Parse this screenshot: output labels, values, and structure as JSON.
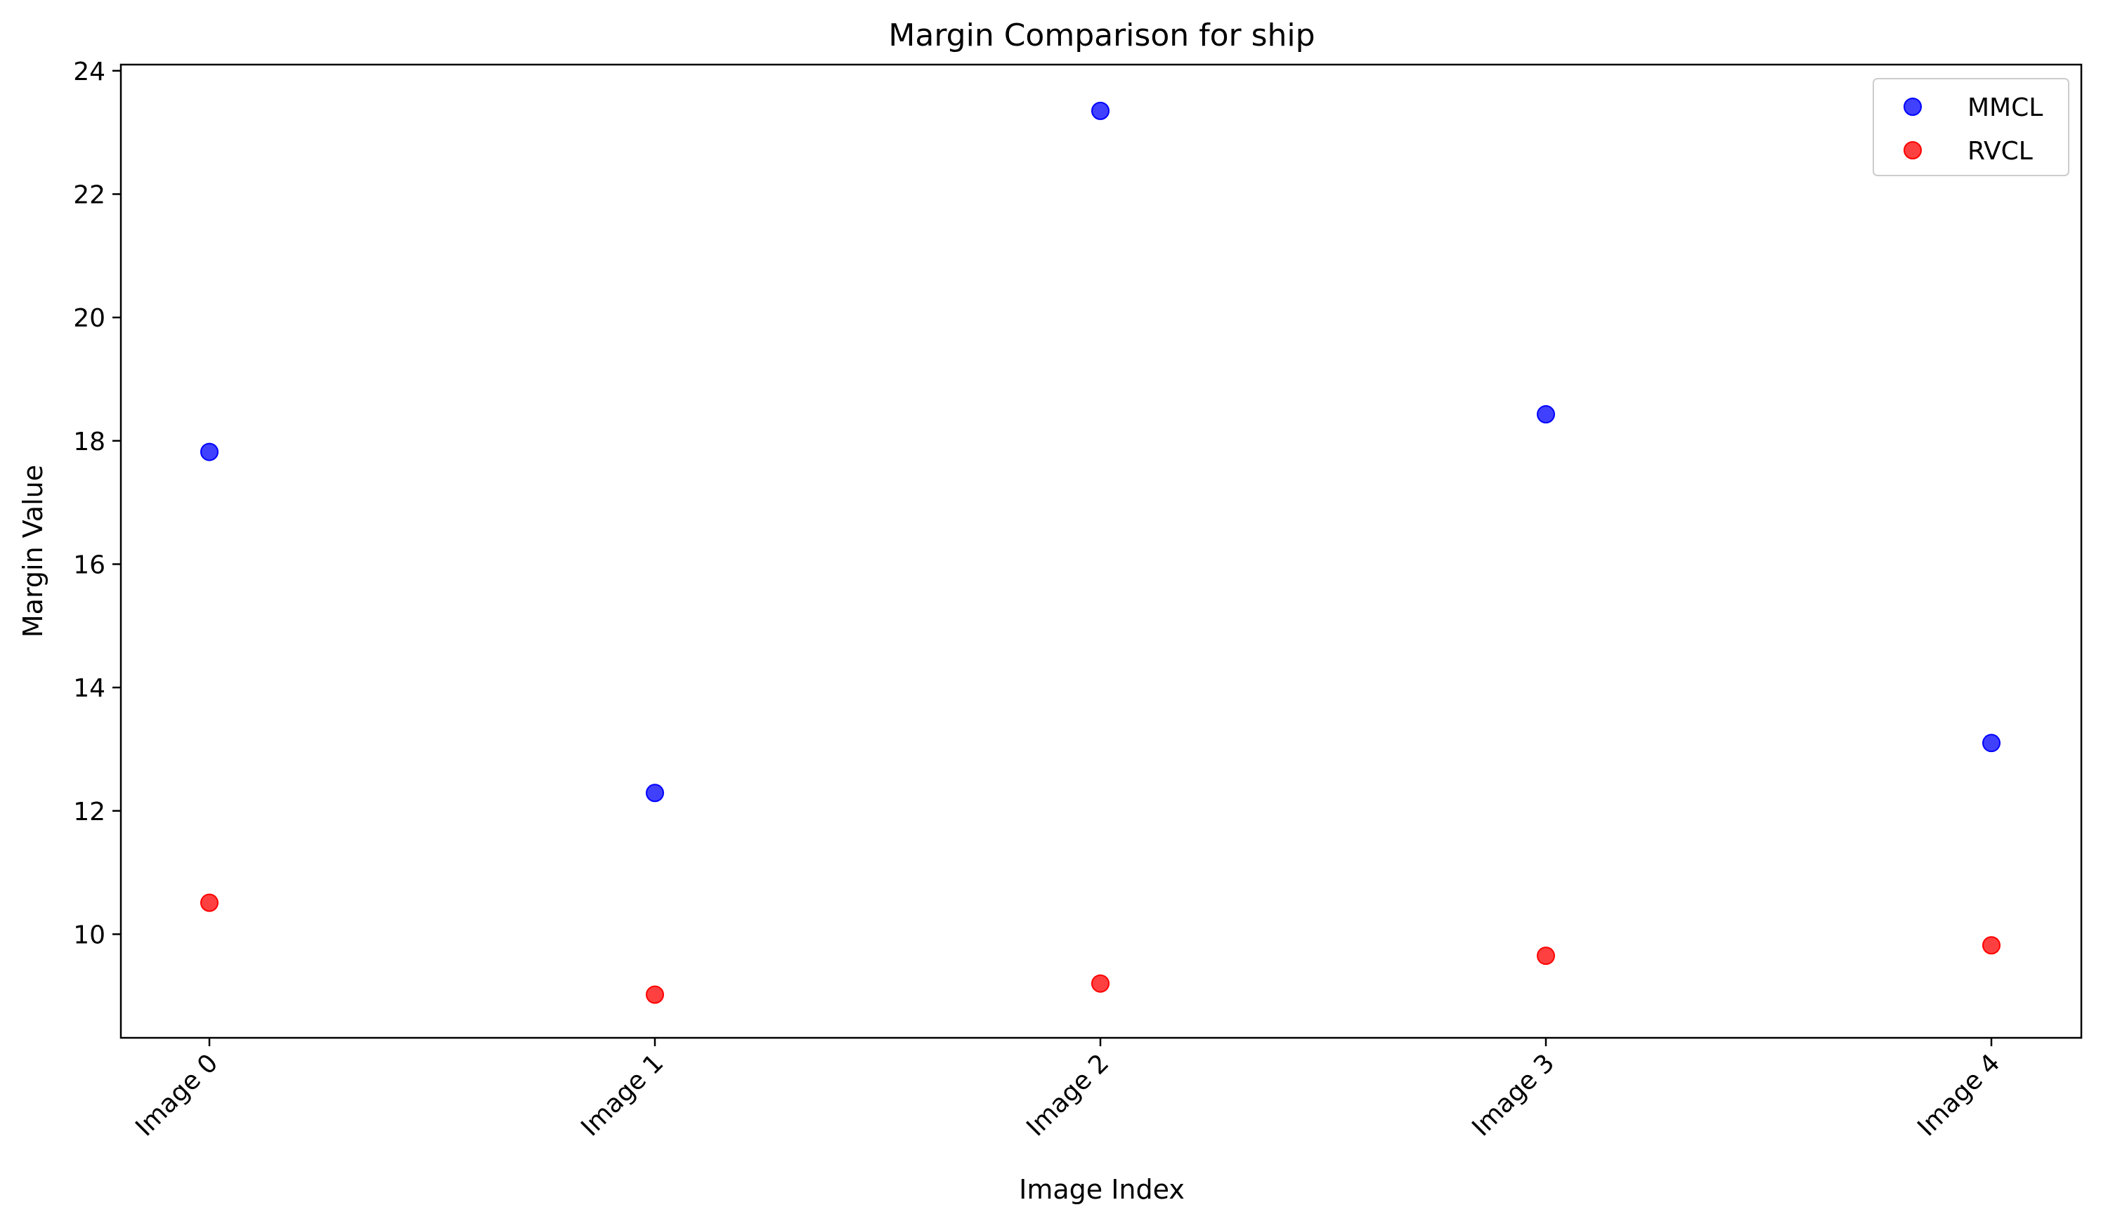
{
  "chart_data": {
    "type": "scatter",
    "title": "Margin Comparison for ship",
    "xlabel": "Image Index",
    "ylabel": "Margin Value",
    "categories": [
      "Image 0",
      "Image 1",
      "Image 2",
      "Image 3",
      "Image 4"
    ],
    "y_ticks": [
      10,
      12,
      14,
      16,
      18,
      20,
      22,
      24
    ],
    "ylim": [
      8.32,
      24.1
    ],
    "grid": false,
    "legend_position": "top-right",
    "series": [
      {
        "name": "MMCL",
        "color": "#0000ff",
        "values": [
          17.82,
          12.29,
          23.35,
          18.43,
          13.1
        ]
      },
      {
        "name": "RVCL",
        "color": "#ff0000",
        "values": [
          10.51,
          9.02,
          9.2,
          9.65,
          9.82
        ]
      }
    ]
  }
}
